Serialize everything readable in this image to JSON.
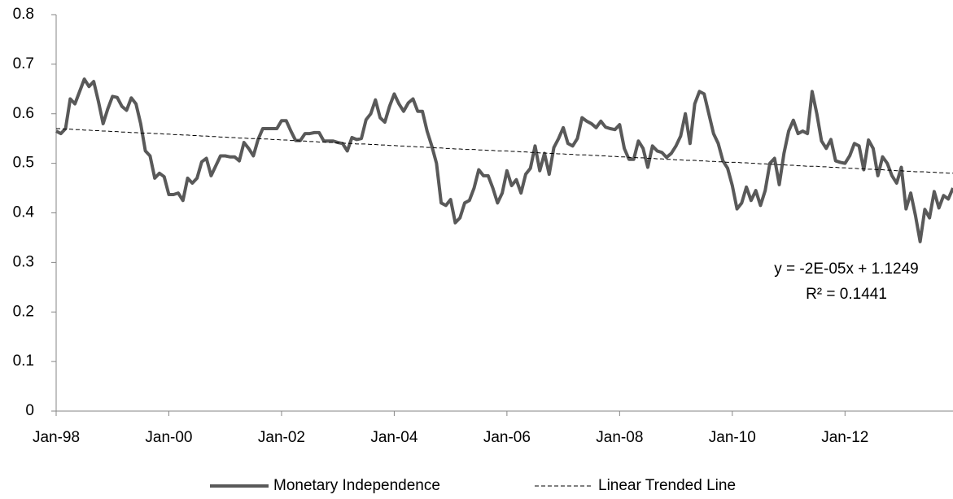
{
  "chart_data": {
    "type": "line",
    "categories": [
      "Jan-98",
      null,
      null,
      null,
      null,
      null,
      null,
      null,
      null,
      null,
      null,
      null,
      null,
      null,
      null,
      null,
      null,
      null,
      null,
      null,
      null,
      null,
      null,
      null,
      "Jan-00",
      null,
      null,
      null,
      null,
      null,
      null,
      null,
      null,
      null,
      null,
      null,
      null,
      null,
      null,
      null,
      null,
      null,
      null,
      null,
      null,
      null,
      null,
      null,
      "Jan-02",
      null,
      null,
      null,
      null,
      null,
      null,
      null,
      null,
      null,
      null,
      null,
      null,
      null,
      null,
      null,
      null,
      null,
      null,
      null,
      null,
      null,
      null,
      null,
      "Jan-04",
      null,
      null,
      null,
      null,
      null,
      null,
      null,
      null,
      null,
      null,
      null,
      null,
      null,
      null,
      null,
      null,
      null,
      null,
      null,
      null,
      null,
      null,
      null,
      "Jan-06",
      null,
      null,
      null,
      null,
      null,
      null,
      null,
      null,
      null,
      null,
      null,
      null,
      null,
      null,
      null,
      null,
      null,
      null,
      null,
      null,
      null,
      null,
      null,
      "Jan-08",
      null,
      null,
      null,
      null,
      null,
      null,
      null,
      null,
      null,
      null,
      null,
      null,
      null,
      null,
      null,
      null,
      null,
      null,
      null,
      null,
      null,
      null,
      null,
      "Jan-10",
      null,
      null,
      null,
      null,
      null,
      null,
      null,
      null,
      null,
      null,
      null,
      null,
      null,
      null,
      null,
      null,
      null,
      null,
      null,
      null,
      null,
      null,
      null,
      "Jan-12",
      null,
      null,
      null,
      null,
      null,
      null,
      null,
      null,
      null,
      null,
      null,
      null,
      null,
      null,
      null,
      null,
      null,
      null,
      null,
      null,
      null,
      null,
      null
    ],
    "series": [
      {
        "name": "Monetary Independence",
        "color": "#595959",
        "line_style": "solid",
        "values": [
          0.565,
          0.56,
          0.57,
          0.63,
          0.62,
          0.645,
          0.67,
          0.655,
          0.665,
          0.625,
          0.58,
          0.61,
          0.635,
          0.633,
          0.615,
          0.607,
          0.632,
          0.62,
          0.58,
          0.525,
          0.515,
          0.47,
          0.48,
          0.473,
          0.437,
          0.437,
          0.44,
          0.425,
          0.47,
          0.46,
          0.47,
          0.503,
          0.51,
          0.475,
          0.495,
          0.515,
          0.515,
          0.513,
          0.513,
          0.505,
          0.542,
          0.53,
          0.515,
          0.548,
          0.57,
          0.57,
          0.57,
          0.57,
          0.586,
          0.586,
          0.565,
          0.546,
          0.546,
          0.56,
          0.56,
          0.562,
          0.562,
          0.545,
          0.545,
          0.545,
          0.542,
          0.54,
          0.525,
          0.552,
          0.548,
          0.55,
          0.588,
          0.6,
          0.628,
          0.592,
          0.583,
          0.615,
          0.64,
          0.62,
          0.605,
          0.622,
          0.63,
          0.605,
          0.605,
          0.565,
          0.535,
          0.5,
          0.42,
          0.415,
          0.427,
          0.38,
          0.39,
          0.42,
          0.425,
          0.45,
          0.487,
          0.475,
          0.475,
          0.45,
          0.42,
          0.44,
          0.485,
          0.455,
          0.467,
          0.44,
          0.478,
          0.49,
          0.535,
          0.485,
          0.52,
          0.478,
          0.532,
          0.55,
          0.572,
          0.54,
          0.535,
          0.55,
          0.592,
          0.585,
          0.58,
          0.572,
          0.585,
          0.573,
          0.57,
          0.568,
          0.578,
          0.53,
          0.508,
          0.508,
          0.545,
          0.53,
          0.492,
          0.535,
          0.525,
          0.522,
          0.512,
          0.52,
          0.535,
          0.555,
          0.6,
          0.54,
          0.62,
          0.645,
          0.64,
          0.6,
          0.56,
          0.54,
          0.505,
          0.49,
          0.455,
          0.408,
          0.42,
          0.452,
          0.425,
          0.445,
          0.415,
          0.445,
          0.5,
          0.51,
          0.457,
          0.52,
          0.565,
          0.587,
          0.56,
          0.565,
          0.56,
          0.645,
          0.6,
          0.545,
          0.53,
          0.548,
          0.505,
          0.502,
          0.5,
          0.515,
          0.54,
          0.535,
          0.487,
          0.547,
          0.53,
          0.475,
          0.513,
          0.5,
          0.475,
          0.46,
          0.492,
          0.408,
          0.44,
          0.395,
          0.342,
          0.407,
          0.39,
          0.443,
          0.41,
          0.435,
          0.428,
          0.45
        ]
      },
      {
        "name": "Linear Trended Line",
        "color": "#000000",
        "line_style": "dashed",
        "values": [
          0.57,
          0.57,
          0.569,
          0.569,
          0.568,
          0.568,
          0.567,
          0.567,
          0.566,
          0.566,
          0.565,
          0.565,
          0.564,
          0.564,
          0.563,
          0.563,
          0.562,
          0.562,
          0.561,
          0.561,
          0.561,
          0.56,
          0.56,
          0.559,
          0.559,
          0.558,
          0.558,
          0.557,
          0.557,
          0.556,
          0.556,
          0.555,
          0.555,
          0.554,
          0.554,
          0.553,
          0.553,
          0.552,
          0.552,
          0.551,
          0.551,
          0.55,
          0.55,
          0.55,
          0.549,
          0.549,
          0.548,
          0.548,
          0.547,
          0.547,
          0.546,
          0.546,
          0.545,
          0.545,
          0.544,
          0.544,
          0.543,
          0.543,
          0.542,
          0.542,
          0.541,
          0.541,
          0.54,
          0.54,
          0.539,
          0.539,
          0.539,
          0.538,
          0.538,
          0.537,
          0.537,
          0.536,
          0.536,
          0.535,
          0.535,
          0.534,
          0.534,
          0.533,
          0.533,
          0.532,
          0.532,
          0.531,
          0.531,
          0.53,
          0.53,
          0.529,
          0.529,
          0.528,
          0.528,
          0.528,
          0.527,
          0.527,
          0.526,
          0.526,
          0.525,
          0.525,
          0.525,
          0.524,
          0.524,
          0.523,
          0.523,
          0.522,
          0.522,
          0.521,
          0.521,
          0.52,
          0.52,
          0.519,
          0.519,
          0.518,
          0.518,
          0.517,
          0.517,
          0.517,
          0.516,
          0.516,
          0.515,
          0.515,
          0.514,
          0.514,
          0.513,
          0.513,
          0.512,
          0.512,
          0.511,
          0.511,
          0.51,
          0.51,
          0.509,
          0.509,
          0.508,
          0.508,
          0.507,
          0.507,
          0.506,
          0.506,
          0.506,
          0.505,
          0.505,
          0.504,
          0.504,
          0.503,
          0.503,
          0.502,
          0.502,
          0.502,
          0.501,
          0.501,
          0.5,
          0.5,
          0.499,
          0.499,
          0.498,
          0.498,
          0.497,
          0.497,
          0.496,
          0.496,
          0.495,
          0.495,
          0.494,
          0.494,
          0.494,
          0.493,
          0.493,
          0.492,
          0.492,
          0.491,
          0.491,
          0.49,
          0.49,
          0.489,
          0.489,
          0.488,
          0.488,
          0.487,
          0.487,
          0.486,
          0.486,
          0.485,
          0.485,
          0.484,
          0.484,
          0.483,
          0.483,
          0.483,
          0.482,
          0.482,
          0.481,
          0.481,
          0.48,
          0.48
        ]
      }
    ],
    "ylim": [
      0,
      0.8
    ],
    "yticks": [
      0,
      0.1,
      0.2,
      0.3,
      0.4,
      0.5,
      0.6,
      0.7,
      0.8
    ],
    "grid": false,
    "legend": "bottom",
    "annotations": [
      "y = -2E-05x + 1.1249",
      "R² = 0.1441"
    ]
  }
}
